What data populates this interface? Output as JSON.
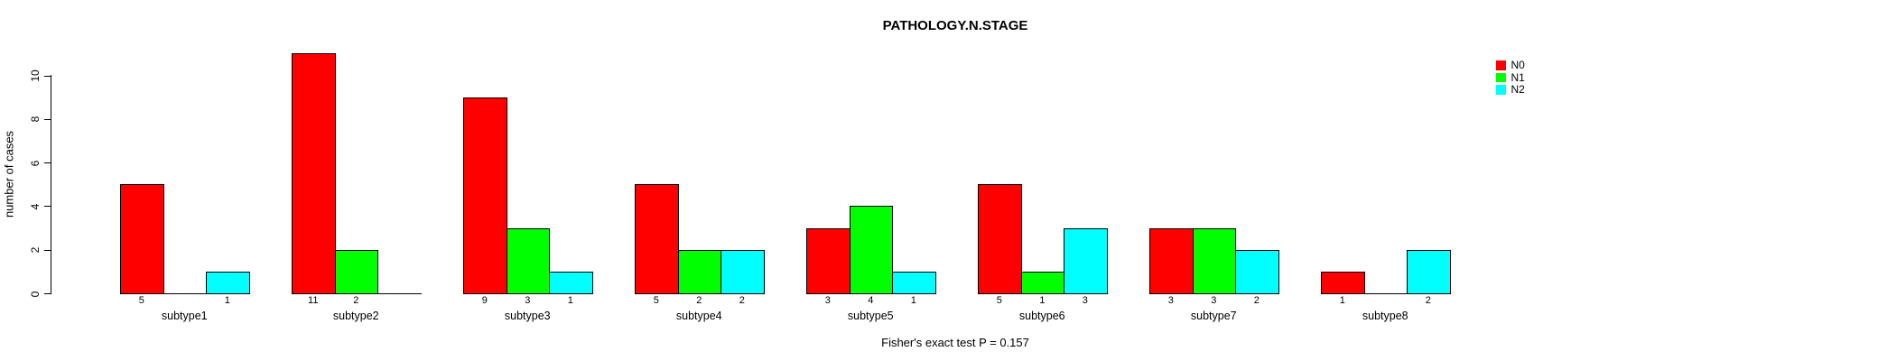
{
  "chart_data": {
    "type": "bar",
    "grouped": true,
    "title": "PATHOLOGY.N.STAGE",
    "ylabel": "number of cases",
    "annotation": "Fisher's exact test P = 0.157",
    "categories": [
      "subtype1",
      "subtype2",
      "subtype3",
      "subtype4",
      "subtype5",
      "subtype6",
      "subtype7",
      "subtype8"
    ],
    "series": [
      {
        "name": "N0",
        "color": "#FF0000",
        "values": [
          5,
          11,
          9,
          5,
          3,
          5,
          3,
          1
        ]
      },
      {
        "name": "N1",
        "color": "#00FF00",
        "values": [
          0,
          2,
          3,
          2,
          4,
          1,
          3,
          0
        ]
      },
      {
        "name": "N2",
        "color": "#00FFFF",
        "values": [
          1,
          0,
          1,
          2,
          1,
          3,
          2,
          2
        ]
      }
    ],
    "yticks": [
      0,
      2,
      4,
      6,
      8,
      10
    ],
    "ylim": [
      0,
      11
    ],
    "grid": false,
    "legend_position": "top-right-outside",
    "value_labels": "shown under each nonzero bar",
    "colors": {
      "axis": "#000000",
      "background": "#FFFFFF"
    }
  }
}
